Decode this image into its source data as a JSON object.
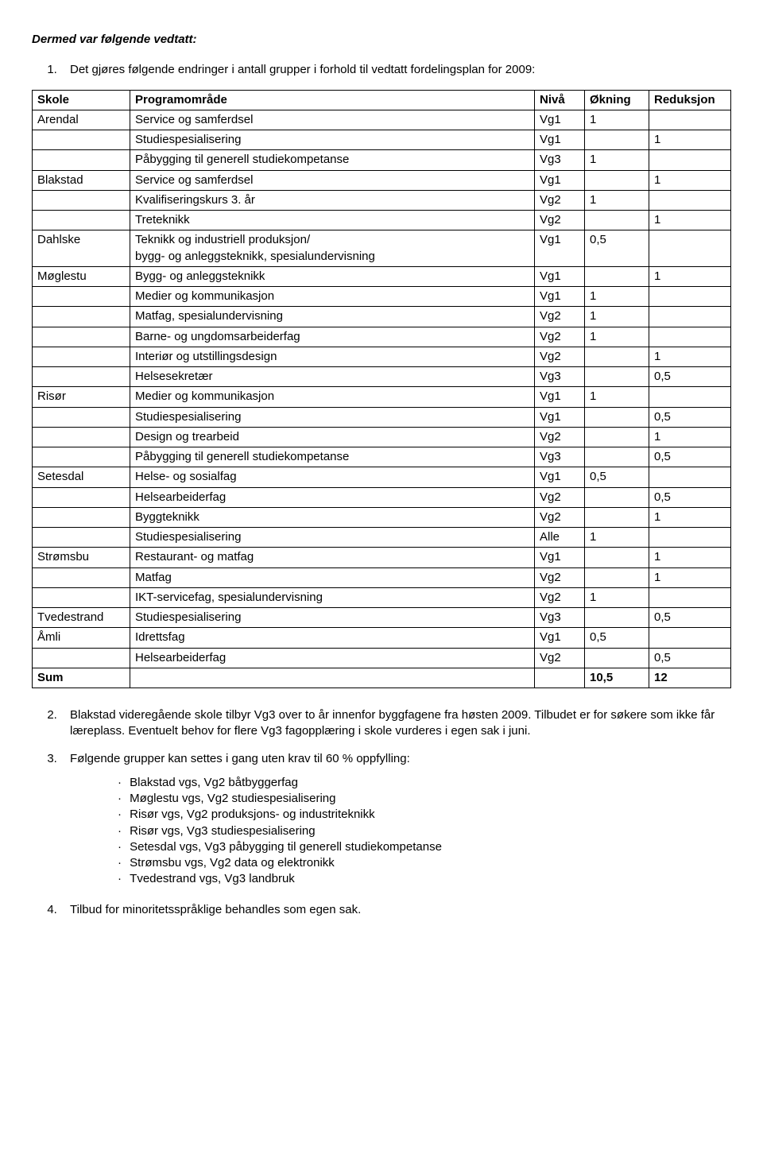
{
  "heading": "Dermed var følgende vedtatt:",
  "intro_item": "Det gjøres følgende endringer i antall grupper i forhold til vedtatt fordelingsplan for 2009:",
  "table": {
    "columns": [
      "Skole",
      "Programområde",
      "Nivå",
      "Økning",
      "Reduksjon"
    ],
    "rows": [
      [
        "Arendal",
        "Service og samferdsel",
        "Vg1",
        "1",
        ""
      ],
      [
        "",
        "Studiespesialisering",
        "Vg1",
        "",
        "1"
      ],
      [
        "",
        "Påbygging til generell studiekompetanse",
        "Vg3",
        "1",
        ""
      ],
      [
        "Blakstad",
        "Service og samferdsel",
        "Vg1",
        "",
        "1"
      ],
      [
        "",
        "Kvalifiseringskurs 3. år",
        "Vg2",
        "1",
        ""
      ],
      [
        "",
        "Treteknikk",
        "Vg2",
        "",
        "1"
      ],
      [
        "Dahlske",
        "Teknikk og industriell produksjon/\nbygg- og anleggsteknikk, spesialundervisning",
        "Vg1",
        "0,5",
        ""
      ],
      [
        "Møglestu",
        "Bygg- og anleggsteknikk",
        "Vg1",
        "",
        "1"
      ],
      [
        "",
        "Medier og kommunikasjon",
        "Vg1",
        "1",
        ""
      ],
      [
        "",
        "Matfag, spesialundervisning",
        "Vg2",
        "1",
        ""
      ],
      [
        "",
        "Barne- og ungdomsarbeiderfag",
        "Vg2",
        "1",
        ""
      ],
      [
        "",
        "Interiør og utstillingsdesign",
        "Vg2",
        "",
        "1"
      ],
      [
        "",
        "Helsesekretær",
        "Vg3",
        "",
        "0,5"
      ],
      [
        "Risør",
        "Medier og kommunikasjon",
        "Vg1",
        "1",
        ""
      ],
      [
        "",
        "Studiespesialisering",
        "Vg1",
        "",
        "0,5"
      ],
      [
        "",
        "Design og trearbeid",
        "Vg2",
        "",
        "1"
      ],
      [
        "",
        "Påbygging til generell studiekompetanse",
        "Vg3",
        "",
        "0,5"
      ],
      [
        "Setesdal",
        "Helse- og sosialfag",
        "Vg1",
        "0,5",
        ""
      ],
      [
        "",
        "Helsearbeiderfag",
        "Vg2",
        "",
        "0,5"
      ],
      [
        "",
        "Byggteknikk",
        "Vg2",
        "",
        "1"
      ],
      [
        "",
        "Studiespesialisering",
        "Alle",
        "1",
        ""
      ],
      [
        "Strømsbu",
        "Restaurant- og matfag",
        "Vg1",
        "",
        "1"
      ],
      [
        "",
        "Matfag",
        "Vg2",
        "",
        "1"
      ],
      [
        "",
        "IKT-servicefag, spesialundervisning",
        "Vg2",
        "1",
        ""
      ],
      [
        "Tvedestrand",
        "Studiespesialisering",
        "Vg3",
        "",
        "0,5"
      ],
      [
        "Åmli",
        "Idrettsfag",
        "Vg1",
        "0,5",
        ""
      ],
      [
        "",
        "Helsearbeiderfag",
        "Vg2",
        "",
        "0,5"
      ]
    ],
    "sum": [
      "Sum",
      "",
      "",
      "10,5",
      "12"
    ]
  },
  "item2": "Blakstad videregående skole tilbyr Vg3 over to år innenfor byggfagene fra høsten 2009. Tilbudet er for søkere som ikke får læreplass. Eventuelt behov for flere Vg3 fagopplæring i skole vurderes i egen sak i juni.",
  "item3": "Følgende grupper kan settes i gang uten krav til 60 % oppfylling:",
  "bullets": [
    "Blakstad vgs, Vg2 båtbyggerfag",
    "Møglestu vgs, Vg2 studiespesialisering",
    "Risør vgs, Vg2 produksjons- og industriteknikk",
    "Risør vgs, Vg3 studiespesialisering",
    "Setesdal vgs, Vg3 påbygging til generell studiekompetanse",
    "Strømsbu vgs, Vg2 data og elektronikk",
    "Tvedestrand vgs, Vg3 landbruk"
  ],
  "item4": "Tilbud for minoritetsspråklige behandles som egen sak."
}
